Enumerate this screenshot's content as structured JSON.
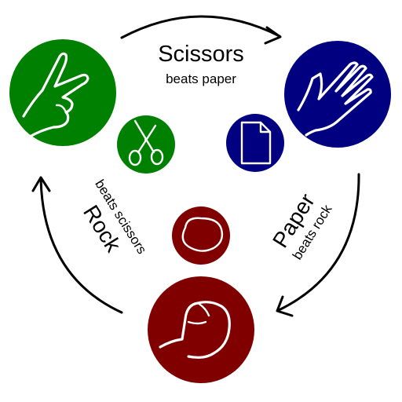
{
  "colors": {
    "scissors": "#008000",
    "paper": "#000080",
    "rock": "#800000",
    "arrow": "#000000",
    "background": "#ffffff"
  },
  "labels": {
    "scissors": {
      "title": "Scissors",
      "subtitle": "beats paper"
    },
    "paper": {
      "title": "Paper",
      "subtitle": "beats rock"
    },
    "rock": {
      "title": "Rock",
      "subtitle": "beats scissors"
    }
  },
  "icons": {
    "scissors_hand": "v-sign-hand-icon",
    "scissors_object": "scissors-icon",
    "paper_hand": "open-hand-icon",
    "paper_object": "document-icon",
    "rock_hand": "fist-icon",
    "rock_object": "stone-icon"
  }
}
